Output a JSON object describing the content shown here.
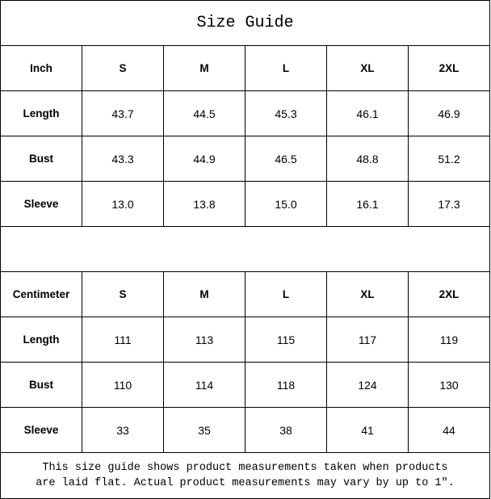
{
  "title": "Size Guide",
  "inch_table": {
    "header": [
      "Inch",
      "S",
      "M",
      "L",
      "XL",
      "2XL"
    ],
    "rows": [
      {
        "label": "Length",
        "values": [
          "43.7",
          "44.5",
          "45.3",
          "46.1",
          "46.9"
        ]
      },
      {
        "label": "Bust",
        "values": [
          "43.3",
          "44.9",
          "46.5",
          "48.8",
          "51.2"
        ]
      },
      {
        "label": "Sleeve",
        "values": [
          "13.0",
          "13.8",
          "15.0",
          "16.1",
          "17.3"
        ]
      }
    ]
  },
  "cm_table": {
    "header": [
      "Centimeter",
      "S",
      "M",
      "L",
      "XL",
      "2XL"
    ],
    "rows": [
      {
        "label": "Length",
        "values": [
          "111",
          "113",
          "115",
          "117",
          "119"
        ]
      },
      {
        "label": "Bust",
        "values": [
          "110",
          "114",
          "118",
          "124",
          "130"
        ]
      },
      {
        "label": "Sleeve",
        "values": [
          "33",
          "35",
          "38",
          "41",
          "44"
        ]
      }
    ]
  },
  "footer": {
    "line1": "This size guide shows product measurements taken when products",
    "line2": "are laid flat. Actual product measurements may vary by up to 1″."
  }
}
